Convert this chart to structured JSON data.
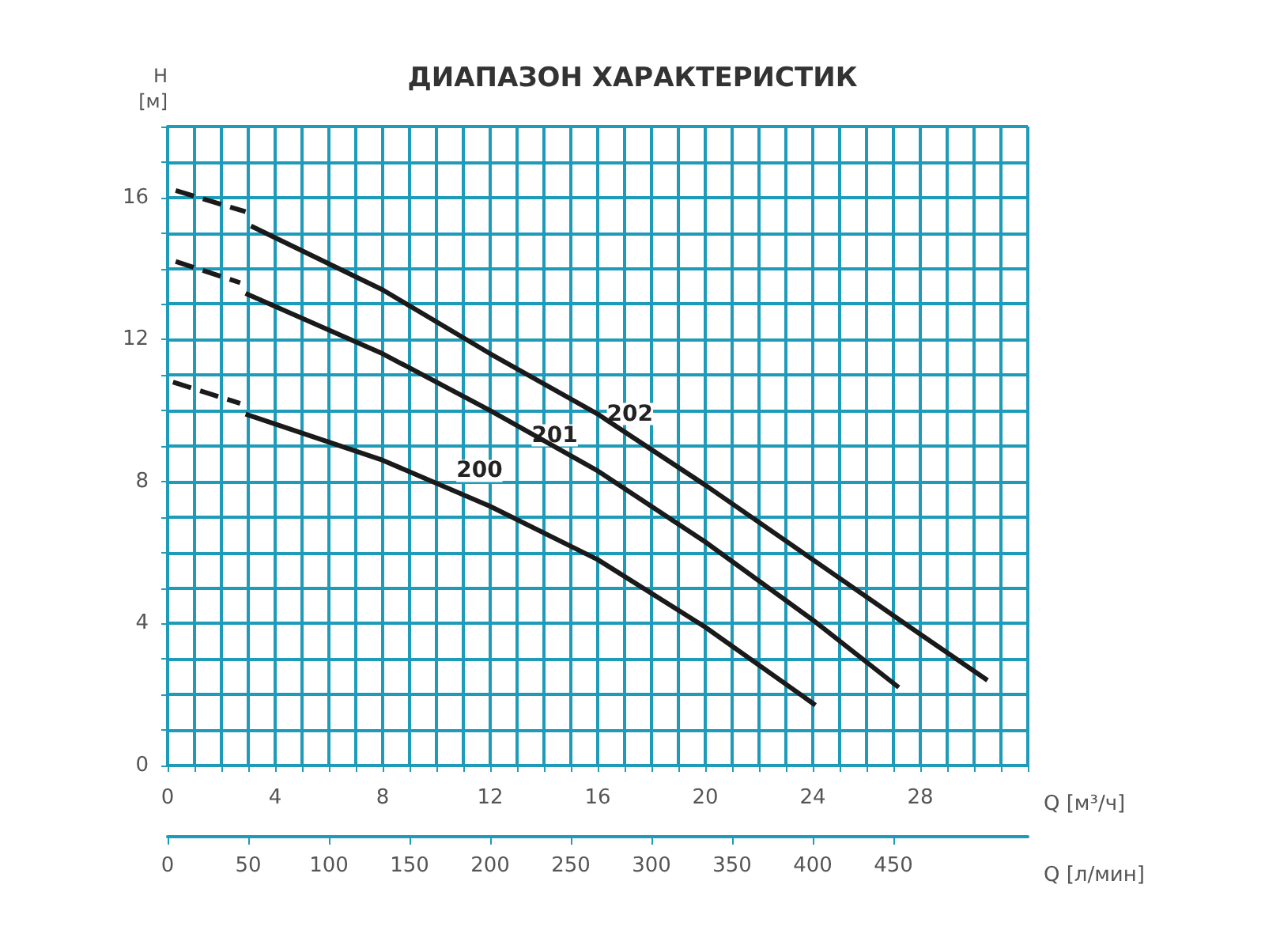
{
  "chart_data": {
    "type": "line",
    "title": "ДИАПАЗОН ХАРАКТЕРИСТИК",
    "xlabel": "Q [м³/ч]",
    "ylabel": "H\n[м]",
    "x2label": "Q [л/мин]",
    "xlim": [
      0,
      32
    ],
    "ylim": [
      0,
      18
    ],
    "x2lim": [
      0,
      533.3
    ],
    "xticks": [
      0,
      {
        "value": 1,
        "label": null
      },
      {
        "value": 2,
        "label": null
      },
      {
        "value": 3,
        "label": null
      },
      4,
      {
        "value": 5,
        "label": null
      },
      {
        "value": 6,
        "label": null
      },
      {
        "value": 7,
        "label": null
      },
      8,
      {
        "value": 9,
        "label": null
      },
      {
        "value": 10,
        "label": null
      },
      {
        "value": 11,
        "label": null
      },
      12,
      {
        "value": 13,
        "label": null
      },
      {
        "value": 14,
        "label": null
      },
      {
        "value": 15,
        "label": null
      },
      16,
      {
        "value": 17,
        "label": null
      },
      {
        "value": 18,
        "label": null
      },
      {
        "value": 19,
        "label": null
      },
      20,
      {
        "value": 21,
        "label": null
      },
      {
        "value": 22,
        "label": null
      },
      {
        "value": 23,
        "label": null
      },
      24,
      {
        "value": 25,
        "label": null
      },
      {
        "value": 26,
        "label": null
      },
      {
        "value": 27,
        "label": null
      },
      28,
      {
        "value": 29,
        "label": null
      },
      {
        "value": 30,
        "label": null
      },
      {
        "value": 31,
        "label": null
      },
      {
        "value": 32,
        "label": null
      }
    ],
    "yticks": [
      0,
      {
        "value": 1,
        "label": null
      },
      {
        "value": 2,
        "label": null
      },
      {
        "value": 3,
        "label": null
      },
      4,
      {
        "value": 5,
        "label": null
      },
      {
        "value": 6,
        "label": null
      },
      {
        "value": 7,
        "label": null
      },
      8,
      {
        "value": 9,
        "label": null
      },
      {
        "value": 10,
        "label": null
      },
      {
        "value": 11,
        "label": null
      },
      12,
      {
        "value": 13,
        "label": null
      },
      {
        "value": 14,
        "label": null
      },
      {
        "value": 15,
        "label": null
      },
      16,
      {
        "value": 17,
        "label": null
      },
      {
        "value": 18,
        "label": null
      }
    ],
    "x2ticks": [
      0,
      50,
      100,
      150,
      200,
      250,
      300,
      350,
      400,
      450
    ],
    "grid": true,
    "series": [
      {
        "color": "#1a1a1a",
        "line_style": "dashed",
        "x": [
          0.3,
          2.9
        ],
        "values": [
          16.2,
          15.6
        ]
      },
      {
        "color": "#1a1a1a",
        "line_style": "solid",
        "x": [
          3.1,
          8,
          12,
          16,
          20,
          24,
          28,
          30.5
        ],
        "values": [
          15.2,
          13.4,
          11.6,
          9.9,
          7.9,
          5.8,
          3.7,
          2.4
        ]
      },
      {
        "color": "#1a1a1a",
        "line_style": "dashed",
        "x": [
          0.3,
          2.7
        ],
        "values": [
          14.2,
          13.6
        ]
      },
      {
        "color": "#1a1a1a",
        "line_style": "solid",
        "x": [
          2.9,
          8,
          12,
          16,
          20,
          24,
          27.2
        ],
        "values": [
          13.3,
          11.6,
          10.0,
          8.3,
          6.3,
          4.1,
          2.2
        ]
      },
      {
        "color": "#1a1a1a",
        "line_style": "dashed",
        "x": [
          0.2,
          2.7
        ],
        "values": [
          10.8,
          10.2
        ]
      },
      {
        "color": "#1a1a1a",
        "line_style": "solid",
        "x": [
          2.9,
          8,
          12,
          16,
          20,
          24.1
        ],
        "values": [
          9.9,
          8.6,
          7.3,
          5.8,
          3.9,
          1.7
        ]
      }
    ],
    "annotations": [
      {
        "text": "200",
        "x": 11.6,
        "y": 8.3
      },
      {
        "text": "201",
        "x": 14.4,
        "y": 9.3
      },
      {
        "text": "202",
        "x": 17.2,
        "y": 9.9
      }
    ]
  }
}
